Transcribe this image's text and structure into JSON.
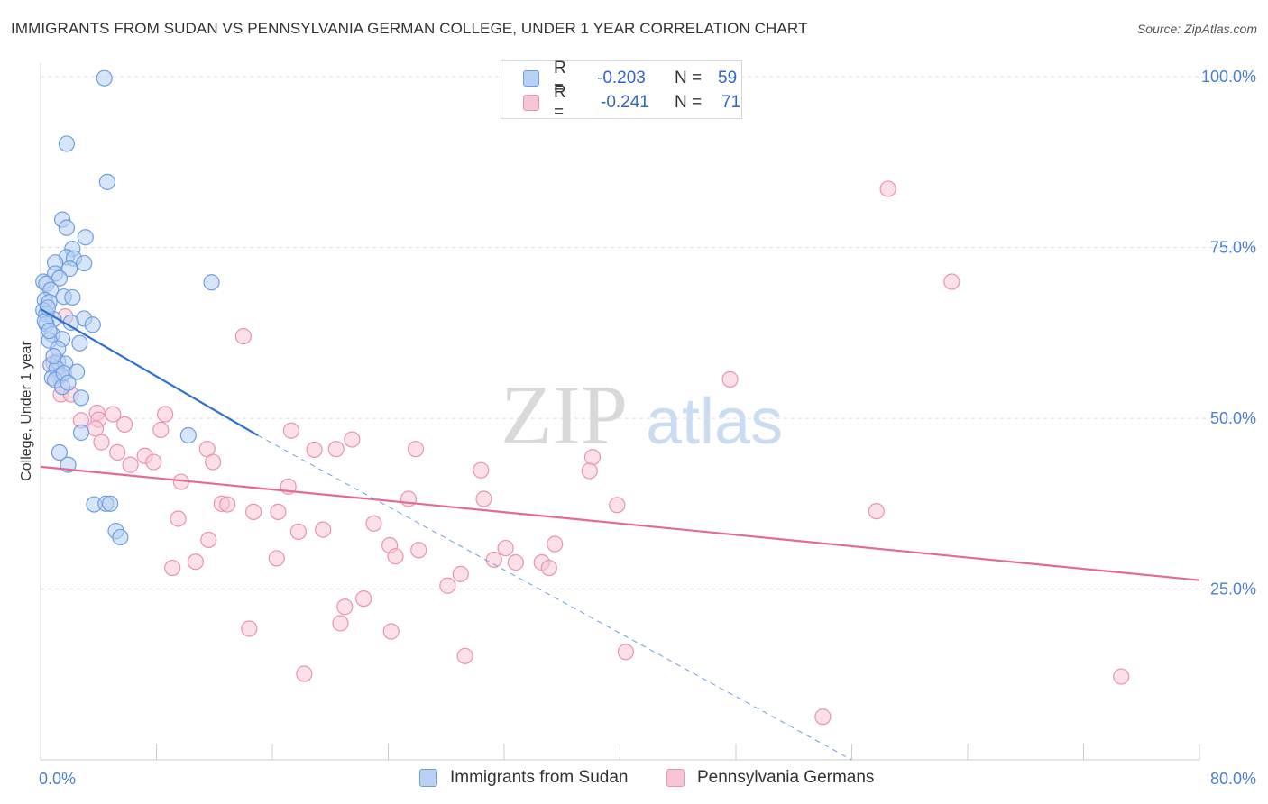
{
  "header": {
    "title": "IMMIGRANTS FROM SUDAN VS PENNSYLVANIA GERMAN COLLEGE, UNDER 1 YEAR CORRELATION CHART",
    "source": "Source: ZipAtlas.com"
  },
  "watermark": {
    "zip": "ZIP",
    "atlas": "atlas"
  },
  "legend": {
    "r_label": "R =",
    "n_label": "N =",
    "rows": [
      {
        "name": "Immigrants from Sudan",
        "r": "-0.203",
        "n": "59"
      },
      {
        "name": "Pennsylvania Germans",
        "r": "-0.241",
        "n": "71"
      }
    ]
  },
  "colors": {
    "blue_fill": "#b7d0f3",
    "blue_stroke": "#6f9ee0",
    "blue_line": "#2d6fd1",
    "pink_fill": "#f7c6d6",
    "pink_stroke": "#ea93b0",
    "pink_line": "#e46a93",
    "tick": "#4a7fd4"
  },
  "chart_data": {
    "type": "scatter",
    "title": "IMMIGRANTS FROM SUDAN VS PENNSYLVANIA GERMAN COLLEGE, UNDER 1 YEAR CORRELATION CHART",
    "xlabel": "",
    "ylabel": "College, Under 1 year",
    "xlim": [
      0,
      80
    ],
    "ylim": [
      0,
      102
    ],
    "x_tick_labels": [
      "0.0%",
      "80.0%"
    ],
    "y_ticks": [
      {
        "value": 25,
        "label": "25.0%"
      },
      {
        "value": 50,
        "label": "50.0%"
      },
      {
        "value": 75,
        "label": "75.0%"
      },
      {
        "value": 100,
        "label": "100.0%"
      }
    ],
    "grid": true,
    "legend_position": "top-center",
    "series": [
      {
        "name": "Immigrants from Sudan",
        "color": "blue",
        "r": -0.203,
        "n": 59,
        "points": [
          [
            4.4,
            99.8
          ],
          [
            1.8,
            90.2
          ],
          [
            4.6,
            84.6
          ],
          [
            1.5,
            79.1
          ],
          [
            1.8,
            77.9
          ],
          [
            3.1,
            76.5
          ],
          [
            2.2,
            74.8
          ],
          [
            1.8,
            73.6
          ],
          [
            2.3,
            73.4
          ],
          [
            1.0,
            72.8
          ],
          [
            3.0,
            72.7
          ],
          [
            2.0,
            71.9
          ],
          [
            1.0,
            71.2
          ],
          [
            1.3,
            70.5
          ],
          [
            0.2,
            70.0
          ],
          [
            0.4,
            69.7
          ],
          [
            11.8,
            69.9
          ],
          [
            0.7,
            68.8
          ],
          [
            1.6,
            67.8
          ],
          [
            2.2,
            67.7
          ],
          [
            0.3,
            67.3
          ],
          [
            0.6,
            67.0
          ],
          [
            0.2,
            65.8
          ],
          [
            0.4,
            65.3
          ],
          [
            0.9,
            64.5
          ],
          [
            3.0,
            64.6
          ],
          [
            2.1,
            64.0
          ],
          [
            3.6,
            63.7
          ],
          [
            0.4,
            63.8
          ],
          [
            0.8,
            62.3
          ],
          [
            1.5,
            61.6
          ],
          [
            0.6,
            61.4
          ],
          [
            2.7,
            61.0
          ],
          [
            0.7,
            57.8
          ],
          [
            1.2,
            58.3
          ],
          [
            1.7,
            58.0
          ],
          [
            1.1,
            57.3
          ],
          [
            1.4,
            56.3
          ],
          [
            0.8,
            55.9
          ],
          [
            1.0,
            55.6
          ],
          [
            1.5,
            54.6
          ],
          [
            2.8,
            53.0
          ],
          [
            2.8,
            47.9
          ],
          [
            10.2,
            47.5
          ],
          [
            1.3,
            45.0
          ],
          [
            1.9,
            43.2
          ],
          [
            3.7,
            37.4
          ],
          [
            4.5,
            37.5
          ],
          [
            4.8,
            37.5
          ],
          [
            5.2,
            33.5
          ],
          [
            5.5,
            32.6
          ],
          [
            0.3,
            64.2
          ],
          [
            0.5,
            66.2
          ],
          [
            1.2,
            60.2
          ],
          [
            0.9,
            59.1
          ],
          [
            1.6,
            56.6
          ],
          [
            2.5,
            56.8
          ],
          [
            0.6,
            62.8
          ],
          [
            1.9,
            55.2
          ]
        ]
      },
      {
        "name": "Pennsylvania Germans",
        "color": "pink",
        "r": -0.241,
        "n": 71,
        "points": [
          [
            58.5,
            83.6
          ],
          [
            62.9,
            70.0
          ],
          [
            14.0,
            62.0
          ],
          [
            47.6,
            55.7
          ],
          [
            1.2,
            56.2
          ],
          [
            1.4,
            53.5
          ],
          [
            2.1,
            53.5
          ],
          [
            3.9,
            50.8
          ],
          [
            4.0,
            49.8
          ],
          [
            5.0,
            50.6
          ],
          [
            5.8,
            49.1
          ],
          [
            8.6,
            50.6
          ],
          [
            2.8,
            49.7
          ],
          [
            3.8,
            48.5
          ],
          [
            8.3,
            48.3
          ],
          [
            17.3,
            48.2
          ],
          [
            4.2,
            46.5
          ],
          [
            21.5,
            46.9
          ],
          [
            11.5,
            45.5
          ],
          [
            18.9,
            45.4
          ],
          [
            20.4,
            45.5
          ],
          [
            25.9,
            45.5
          ],
          [
            7.2,
            44.5
          ],
          [
            5.3,
            45.0
          ],
          [
            6.2,
            43.2
          ],
          [
            7.8,
            43.6
          ],
          [
            11.9,
            43.6
          ],
          [
            38.1,
            44.3
          ],
          [
            30.4,
            42.4
          ],
          [
            37.9,
            42.3
          ],
          [
            9.7,
            40.7
          ],
          [
            17.1,
            40.0
          ],
          [
            12.5,
            37.5
          ],
          [
            12.9,
            37.4
          ],
          [
            25.4,
            38.2
          ],
          [
            30.6,
            38.2
          ],
          [
            39.8,
            37.3
          ],
          [
            14.7,
            36.3
          ],
          [
            16.4,
            36.3
          ],
          [
            57.7,
            36.4
          ],
          [
            9.5,
            35.3
          ],
          [
            23.0,
            34.6
          ],
          [
            17.8,
            33.4
          ],
          [
            19.5,
            33.7
          ],
          [
            11.6,
            32.2
          ],
          [
            24.1,
            31.4
          ],
          [
            26.1,
            30.7
          ],
          [
            32.1,
            31.0
          ],
          [
            35.5,
            31.6
          ],
          [
            16.3,
            29.5
          ],
          [
            10.7,
            29.0
          ],
          [
            24.5,
            29.8
          ],
          [
            31.3,
            29.3
          ],
          [
            32.8,
            28.9
          ],
          [
            34.6,
            28.9
          ],
          [
            35.1,
            28.1
          ],
          [
            9.1,
            28.1
          ],
          [
            29.0,
            27.2
          ],
          [
            28.1,
            25.5
          ],
          [
            22.3,
            23.6
          ],
          [
            21.0,
            22.4
          ],
          [
            20.7,
            20.0
          ],
          [
            14.4,
            19.2
          ],
          [
            24.2,
            18.8
          ],
          [
            29.3,
            15.2
          ],
          [
            40.4,
            15.8
          ],
          [
            18.2,
            12.6
          ],
          [
            74.6,
            12.2
          ],
          [
            54.0,
            6.3
          ],
          [
            0.9,
            58.1
          ],
          [
            1.7,
            64.9
          ]
        ]
      }
    ],
    "trendlines": [
      {
        "series": "Immigrants from Sudan",
        "solid_from": [
          0,
          66.0
        ],
        "solid_to": [
          15.0,
          47.5
        ],
        "dashed_to": [
          56.0,
          0
        ]
      },
      {
        "series": "Pennsylvania Germans",
        "from": [
          0,
          42.9
        ],
        "to": [
          80,
          26.3
        ]
      }
    ]
  }
}
